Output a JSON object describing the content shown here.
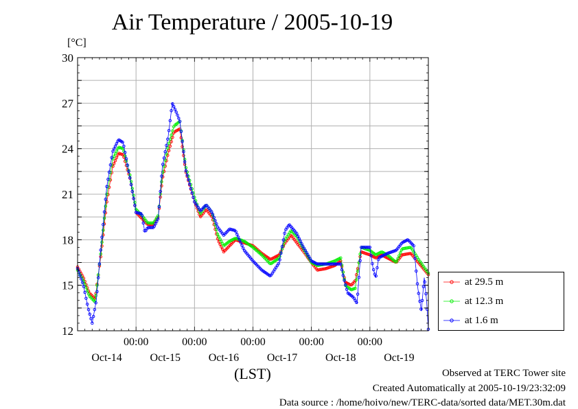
{
  "chart_data": {
    "type": "line",
    "title": "Air Temperature / 2005-10-19",
    "ylabel": "[°C]",
    "xlabel": "(LST)",
    "ylim": [
      12,
      30
    ],
    "yticks": [
      12,
      15,
      18,
      21,
      24,
      27,
      30
    ],
    "xlim": [
      0,
      6
    ],
    "x_unit": "days from start of Oct-14 (LST)",
    "x_time_ticks": [
      {
        "x": 1,
        "label": "00:00"
      },
      {
        "x": 2,
        "label": "00:00"
      },
      {
        "x": 3,
        "label": "00:00"
      },
      {
        "x": 4,
        "label": "00:00"
      },
      {
        "x": 5,
        "label": "00:00"
      }
    ],
    "x_day_labels": [
      {
        "x": 0.5,
        "label": "Oct-14"
      },
      {
        "x": 1.5,
        "label": "Oct-15"
      },
      {
        "x": 2.5,
        "label": "Oct-16"
      },
      {
        "x": 3.5,
        "label": "Oct-17"
      },
      {
        "x": 4.5,
        "label": "Oct-18"
      },
      {
        "x": 5.5,
        "label": "Oct-19"
      }
    ],
    "grid": true,
    "legend_position": "right",
    "series": [
      {
        "name": "at 29.5 m",
        "color": "#ff0000",
        "points": [
          [
            0,
            16.2
          ],
          [
            0.1,
            15.5
          ],
          [
            0.2,
            14.5
          ],
          [
            0.3,
            14.1
          ],
          [
            0.4,
            17.0
          ],
          [
            0.5,
            20.5
          ],
          [
            0.6,
            22.8
          ],
          [
            0.7,
            23.7
          ],
          [
            0.78,
            23.6
          ],
          [
            0.9,
            22.0
          ],
          [
            1.0,
            19.8
          ],
          [
            1.1,
            19.4
          ],
          [
            1.2,
            19.0
          ],
          [
            1.3,
            19.0
          ],
          [
            1.38,
            19.5
          ],
          [
            1.45,
            22.0
          ],
          [
            1.55,
            23.7
          ],
          [
            1.65,
            25.1
          ],
          [
            1.75,
            25.3
          ],
          [
            1.85,
            22.5
          ],
          [
            2.0,
            20.5
          ],
          [
            2.1,
            19.5
          ],
          [
            2.2,
            20.0
          ],
          [
            2.3,
            19.5
          ],
          [
            2.4,
            18.0
          ],
          [
            2.5,
            17.2
          ],
          [
            2.6,
            17.6
          ],
          [
            2.7,
            18.0
          ],
          [
            2.85,
            17.8
          ],
          [
            3.0,
            17.6
          ],
          [
            3.15,
            17.1
          ],
          [
            3.3,
            16.7
          ],
          [
            3.45,
            17.0
          ],
          [
            3.55,
            17.8
          ],
          [
            3.65,
            18.3
          ],
          [
            3.75,
            17.8
          ],
          [
            3.85,
            17.3
          ],
          [
            4.0,
            16.5
          ],
          [
            4.1,
            16.0
          ],
          [
            4.25,
            16.1
          ],
          [
            4.4,
            16.3
          ],
          [
            4.5,
            16.6
          ],
          [
            4.58,
            15.2
          ],
          [
            4.68,
            15.0
          ],
          [
            4.75,
            15.3
          ],
          [
            4.85,
            17.2
          ],
          [
            5.0,
            17.0
          ],
          [
            5.1,
            16.8
          ],
          [
            5.2,
            17.0
          ],
          [
            5.3,
            16.8
          ],
          [
            5.45,
            16.5
          ],
          [
            5.55,
            17.0
          ],
          [
            5.7,
            17.1
          ],
          [
            5.85,
            16.4
          ],
          [
            6.0,
            15.7
          ]
        ]
      },
      {
        "name": "at 12.3 m",
        "color": "#00ee00",
        "points": [
          [
            0,
            16.0
          ],
          [
            0.1,
            15.3
          ],
          [
            0.2,
            14.3
          ],
          [
            0.3,
            13.9
          ],
          [
            0.4,
            17.2
          ],
          [
            0.5,
            21.0
          ],
          [
            0.6,
            23.3
          ],
          [
            0.7,
            24.1
          ],
          [
            0.78,
            24.0
          ],
          [
            0.9,
            22.2
          ],
          [
            1.0,
            20.0
          ],
          [
            1.1,
            19.6
          ],
          [
            1.2,
            19.1
          ],
          [
            1.3,
            19.1
          ],
          [
            1.38,
            19.6
          ],
          [
            1.45,
            22.3
          ],
          [
            1.55,
            24.2
          ],
          [
            1.65,
            25.5
          ],
          [
            1.75,
            25.8
          ],
          [
            1.85,
            22.8
          ],
          [
            2.0,
            20.8
          ],
          [
            2.1,
            19.7
          ],
          [
            2.2,
            20.3
          ],
          [
            2.3,
            19.8
          ],
          [
            2.4,
            18.3
          ],
          [
            2.5,
            17.6
          ],
          [
            2.6,
            17.9
          ],
          [
            2.7,
            18.1
          ],
          [
            2.85,
            17.9
          ],
          [
            3.0,
            17.5
          ],
          [
            3.15,
            17.0
          ],
          [
            3.3,
            16.4
          ],
          [
            3.45,
            16.8
          ],
          [
            3.55,
            18.0
          ],
          [
            3.65,
            18.6
          ],
          [
            3.75,
            18.2
          ],
          [
            3.85,
            17.5
          ],
          [
            4.0,
            16.5
          ],
          [
            4.1,
            16.3
          ],
          [
            4.25,
            16.4
          ],
          [
            4.4,
            16.6
          ],
          [
            4.5,
            16.8
          ],
          [
            4.58,
            15.0
          ],
          [
            4.68,
            14.7
          ],
          [
            4.75,
            14.8
          ],
          [
            4.85,
            17.5
          ],
          [
            5.0,
            17.3
          ],
          [
            5.1,
            17.0
          ],
          [
            5.2,
            17.2
          ],
          [
            5.3,
            17.0
          ],
          [
            5.45,
            16.5
          ],
          [
            5.55,
            17.4
          ],
          [
            5.7,
            17.5
          ],
          [
            5.85,
            16.6
          ],
          [
            6.0,
            15.8
          ]
        ]
      },
      {
        "name": "at 1.6 m",
        "color": "#0000ff",
        "points": [
          [
            0,
            16.1
          ],
          [
            0.1,
            15.0
          ],
          [
            0.18,
            13.5
          ],
          [
            0.25,
            12.5
          ],
          [
            0.32,
            14.0
          ],
          [
            0.4,
            17.5
          ],
          [
            0.5,
            21.5
          ],
          [
            0.6,
            23.8
          ],
          [
            0.7,
            24.6
          ],
          [
            0.78,
            24.4
          ],
          [
            0.9,
            22.0
          ],
          [
            1.0,
            19.8
          ],
          [
            1.1,
            19.7
          ],
          [
            1.15,
            18.5
          ],
          [
            1.2,
            18.8
          ],
          [
            1.3,
            18.8
          ],
          [
            1.38,
            19.4
          ],
          [
            1.45,
            22.8
          ],
          [
            1.55,
            24.8
          ],
          [
            1.62,
            27.0
          ],
          [
            1.7,
            26.3
          ],
          [
            1.75,
            25.8
          ],
          [
            1.85,
            22.6
          ],
          [
            2.0,
            20.5
          ],
          [
            2.1,
            19.9
          ],
          [
            2.2,
            20.3
          ],
          [
            2.3,
            19.8
          ],
          [
            2.4,
            18.8
          ],
          [
            2.5,
            18.3
          ],
          [
            2.6,
            18.7
          ],
          [
            2.7,
            18.6
          ],
          [
            2.85,
            17.3
          ],
          [
            3.0,
            16.6
          ],
          [
            3.15,
            16.0
          ],
          [
            3.3,
            15.6
          ],
          [
            3.45,
            16.5
          ],
          [
            3.55,
            18.6
          ],
          [
            3.62,
            19.0
          ],
          [
            3.75,
            18.4
          ],
          [
            3.85,
            17.6
          ],
          [
            4.0,
            16.6
          ],
          [
            4.1,
            16.4
          ],
          [
            4.25,
            16.4
          ],
          [
            4.4,
            16.4
          ],
          [
            4.5,
            16.4
          ],
          [
            4.55,
            15.5
          ],
          [
            4.62,
            14.5
          ],
          [
            4.72,
            14.2
          ],
          [
            4.78,
            13.8
          ],
          [
            4.85,
            17.5
          ],
          [
            5.0,
            17.5
          ],
          [
            5.05,
            16.2
          ],
          [
            5.1,
            15.5
          ],
          [
            5.15,
            16.8
          ],
          [
            5.3,
            17.1
          ],
          [
            5.45,
            17.3
          ],
          [
            5.55,
            17.8
          ],
          [
            5.65,
            18.0
          ],
          [
            5.75,
            17.6
          ],
          [
            5.82,
            14.8
          ],
          [
            5.88,
            13.3
          ],
          [
            5.93,
            15.5
          ],
          [
            5.97,
            14.0
          ],
          [
            6.0,
            12.1
          ]
        ]
      }
    ]
  },
  "footer": {
    "line1": "Observed at TERC Tower site",
    "line2": "Created Automatically at 2005-10-19/23:32:09",
    "line3": "Data source : /home/hoivo/new/TERC-data/sorted  data/MET.30m.dat"
  }
}
